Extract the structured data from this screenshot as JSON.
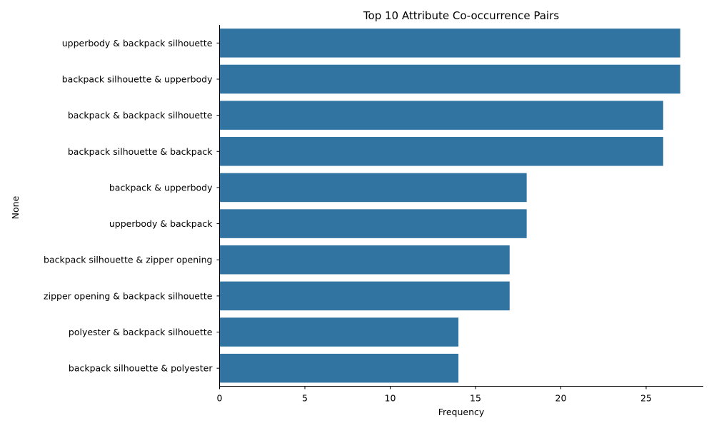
{
  "chart_data": {
    "type": "bar",
    "orientation": "horizontal",
    "title": "Top 10 Attribute Co-occurrence Pairs",
    "xlabel": "Frequency",
    "ylabel": "None",
    "categories": [
      "upperbody & backpack silhouette",
      "backpack silhouette & upperbody",
      "backpack & backpack silhouette",
      "backpack silhouette & backpack",
      "backpack & upperbody",
      "upperbody & backpack",
      "backpack silhouette & zipper opening",
      "zipper opening & backpack silhouette",
      "polyester & backpack silhouette",
      "backpack silhouette & polyester"
    ],
    "values": [
      27,
      27,
      26,
      26,
      18,
      18,
      17,
      17,
      14,
      14
    ],
    "xlim": [
      0,
      28.35
    ],
    "xticks": [
      0,
      5,
      10,
      15,
      20,
      25
    ],
    "grid": false,
    "colors": {
      "bar": "#3274a1",
      "axis": "#000000"
    }
  }
}
